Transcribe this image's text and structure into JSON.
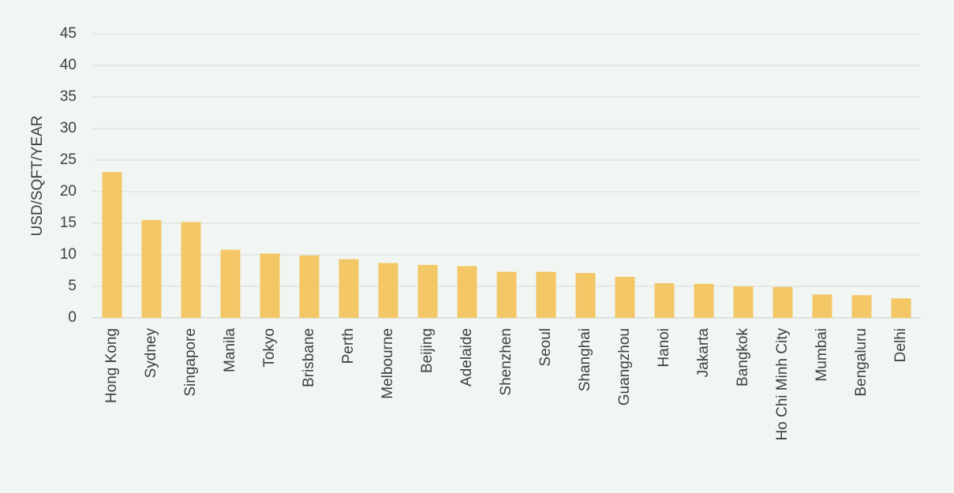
{
  "chart_data": {
    "type": "bar",
    "title": "",
    "xlabel": "",
    "ylabel": "USD/SQFT/YEAR",
    "ylim": [
      0,
      45
    ],
    "yticks": [
      0,
      5,
      10,
      15,
      20,
      25,
      30,
      35,
      40,
      45
    ],
    "grid": true,
    "legend": "none",
    "bar_color": "#f4c766",
    "categories": [
      "Hong Kong",
      "Sydney",
      "Singapore",
      "Manila",
      "Tokyo",
      "Brisbane",
      "Perth",
      "Melbourne",
      "Beijing",
      "Adelaide",
      "Shenzhen",
      "Seoul",
      "Shanghai",
      "Guangzhou",
      "Hanoi",
      "Jakarta",
      "Bangkok",
      "Ho Chi Minh City",
      "Mumbai",
      "Bengaluru",
      "Delhi"
    ],
    "values": [
      23.1,
      15.5,
      15.2,
      10.8,
      10.2,
      9.9,
      9.3,
      8.7,
      8.4,
      8.2,
      7.3,
      7.3,
      7.1,
      6.5,
      5.5,
      5.4,
      5.0,
      4.9,
      3.7,
      3.6,
      3.1
    ]
  }
}
